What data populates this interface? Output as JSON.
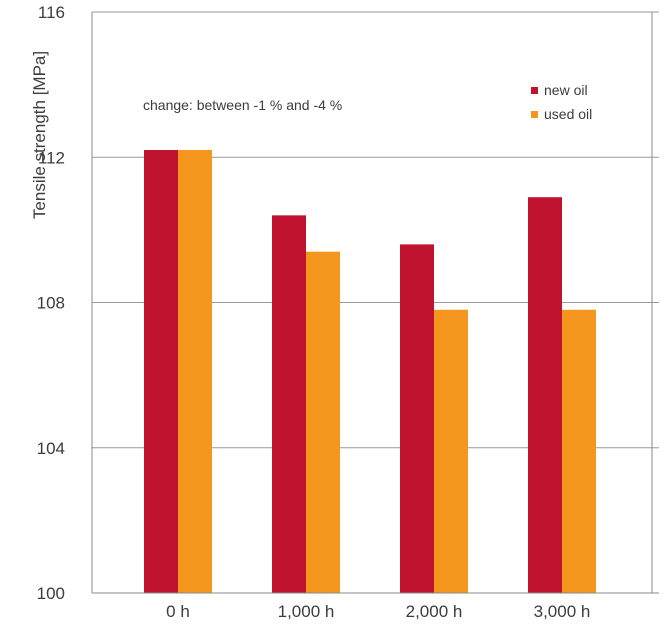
{
  "chart_data": {
    "type": "bar",
    "title": "",
    "xlabel": "",
    "ylabel": "Tensile strength [MPa]",
    "ylim": [
      100,
      116
    ],
    "yticks": [
      100,
      104,
      108,
      112,
      116
    ],
    "categories": [
      "0 h",
      "1,000 h",
      "2,000 h",
      "3,000 h"
    ],
    "series": [
      {
        "name": "new oil",
        "values": [
          112.2,
          110.4,
          109.6,
          110.9
        ],
        "color": "#c0132f"
      },
      {
        "name": "used oil",
        "values": [
          112.2,
          109.4,
          107.8,
          107.8
        ],
        "color": "#f5971f"
      }
    ],
    "annotation": "change: between -1 % and -4 %",
    "grid": true,
    "legend_position": "top-right"
  }
}
